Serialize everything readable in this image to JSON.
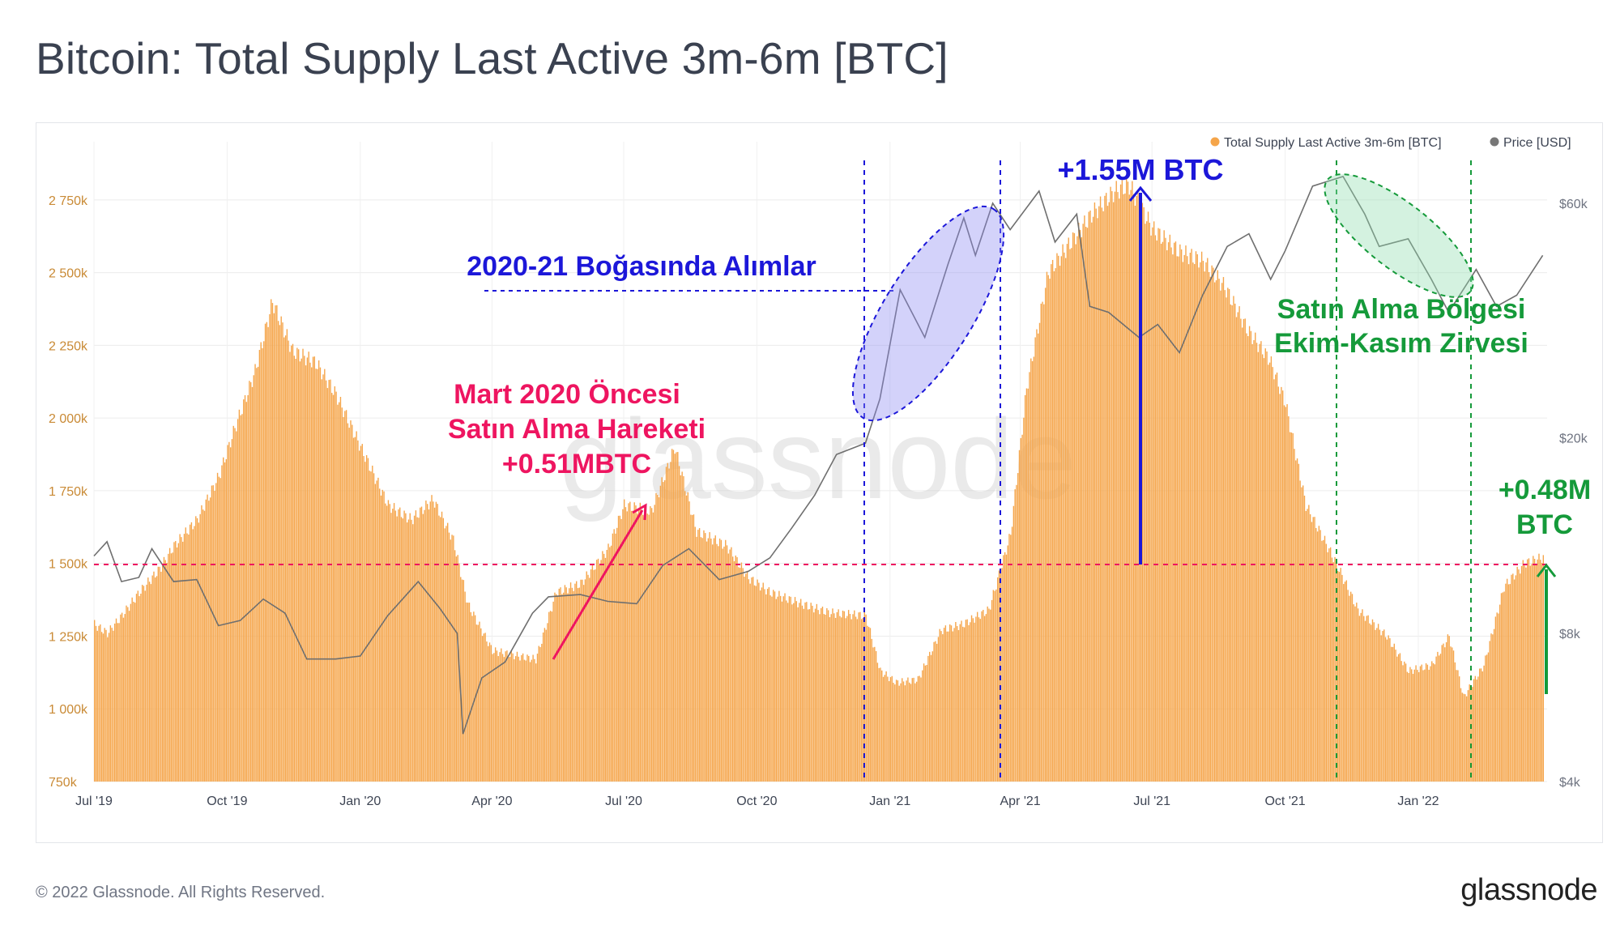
{
  "title": "Bitcoin: Total Supply Last Active 3m-6m [BTC]",
  "footer": {
    "copyright": "© 2022 Glassnode. All Rights Reserved.",
    "logo_text": "glassnode"
  },
  "watermark": "glassnode",
  "colors": {
    "supply": "#f5a54a",
    "price": "#6f6f6f",
    "blue_annotation": "#1c17d9",
    "pink_annotation": "#ee1560",
    "green_annotation": "#159a3a",
    "axis_left_text": "#c98a35",
    "axis_right_text": "#6e7380"
  },
  "annotations": {
    "buying_2020_21": "2020-21 Boğasında Alımlar",
    "plus_155": "+1.55M BTC",
    "pre_march_line1": "Mart 2020 Öncesi",
    "pre_march_line2": "Satın Alma Hareketi",
    "pre_march_line3": "+0.51MBTC",
    "buy_zone_line1": "Satın Alma Bölgesi",
    "buy_zone_line2": "Ekim-Kasım Zirvesi",
    "plus_048_line1": "+0.48M",
    "plus_048_line2": "BTC"
  },
  "chart_data": {
    "type": "bar",
    "legend": [
      {
        "name": "Total Supply Last Active 3m-6m [BTC]",
        "color": "#f5a54a"
      },
      {
        "name": "Price [USD]",
        "color": "#6f6f6f"
      }
    ],
    "legend_position": "top-right",
    "x_range": [
      "2019-07-01",
      "2022-03-31"
    ],
    "x_ticks": [
      {
        "date": "2019-07-01",
        "label": "Jul '19"
      },
      {
        "date": "2019-10-01",
        "label": "Oct '19"
      },
      {
        "date": "2020-01-01",
        "label": "Jan '20"
      },
      {
        "date": "2020-04-01",
        "label": "Apr '20"
      },
      {
        "date": "2020-07-01",
        "label": "Jul '20"
      },
      {
        "date": "2020-10-01",
        "label": "Oct '20"
      },
      {
        "date": "2021-01-01",
        "label": "Jan '21"
      },
      {
        "date": "2021-04-01",
        "label": "Apr '21"
      },
      {
        "date": "2021-07-01",
        "label": "Jul '21"
      },
      {
        "date": "2021-10-01",
        "label": "Oct '21"
      },
      {
        "date": "2022-01-01",
        "label": "Jan '22"
      }
    ],
    "y_left": {
      "range": [
        750000,
        2950000
      ],
      "ticks": [
        {
          "value": 750000,
          "label": "750k"
        },
        {
          "value": 1000000,
          "label": "1 000k"
        },
        {
          "value": 1250000,
          "label": "1 250k"
        },
        {
          "value": 1500000,
          "label": "1 500k"
        },
        {
          "value": 1750000,
          "label": "1 750k"
        },
        {
          "value": 2000000,
          "label": "2 000k"
        },
        {
          "value": 2250000,
          "label": "2 250k"
        },
        {
          "value": 2500000,
          "label": "2 500k"
        },
        {
          "value": 2750000,
          "label": "2 750k"
        }
      ]
    },
    "y_right": {
      "scale": "log",
      "range": [
        4000,
        80000
      ],
      "ticks": [
        {
          "value": 4000,
          "label": "$4k"
        },
        {
          "value": 8000,
          "label": "$8k"
        },
        {
          "value": 20000,
          "label": "$20k"
        },
        {
          "value": 60000,
          "label": "$60k"
        }
      ]
    },
    "series": [
      {
        "name": "Total Supply Last Active 3m-6m [BTC]",
        "axis": "left",
        "style": "bars",
        "points": [
          [
            "2019-07-01",
            1290000
          ],
          [
            "2019-07-10",
            1260000
          ],
          [
            "2019-07-20",
            1320000
          ],
          [
            "2019-08-01",
            1400000
          ],
          [
            "2019-08-15",
            1480000
          ],
          [
            "2019-08-25",
            1560000
          ],
          [
            "2019-09-10",
            1650000
          ],
          [
            "2019-09-25",
            1800000
          ],
          [
            "2019-10-05",
            1950000
          ],
          [
            "2019-10-20",
            2160000
          ],
          [
            "2019-11-01",
            2400000
          ],
          [
            "2019-11-15",
            2230000
          ],
          [
            "2019-12-01",
            2190000
          ],
          [
            "2019-12-15",
            2080000
          ],
          [
            "2020-01-01",
            1900000
          ],
          [
            "2020-01-20",
            1700000
          ],
          [
            "2020-02-05",
            1650000
          ],
          [
            "2020-02-20",
            1720000
          ],
          [
            "2020-03-05",
            1580000
          ],
          [
            "2020-03-15",
            1360000
          ],
          [
            "2020-04-01",
            1200000
          ],
          [
            "2020-04-20",
            1180000
          ],
          [
            "2020-05-01",
            1170000
          ],
          [
            "2020-05-15",
            1400000
          ],
          [
            "2020-06-01",
            1430000
          ],
          [
            "2020-06-20",
            1550000
          ],
          [
            "2020-07-01",
            1700000
          ],
          [
            "2020-07-20",
            1680000
          ],
          [
            "2020-08-05",
            1900000
          ],
          [
            "2020-08-20",
            1610000
          ],
          [
            "2020-09-10",
            1560000
          ],
          [
            "2020-09-25",
            1450000
          ],
          [
            "2020-10-10",
            1400000
          ],
          [
            "2020-11-01",
            1360000
          ],
          [
            "2020-11-20",
            1330000
          ],
          [
            "2020-12-15",
            1320000
          ],
          [
            "2020-12-25",
            1130000
          ],
          [
            "2021-01-05",
            1090000
          ],
          [
            "2021-01-20",
            1100000
          ],
          [
            "2021-02-05",
            1270000
          ],
          [
            "2021-02-20",
            1290000
          ],
          [
            "2021-03-10",
            1340000
          ],
          [
            "2021-03-25",
            1600000
          ],
          [
            "2021-04-05",
            2100000
          ],
          [
            "2021-04-20",
            2500000
          ],
          [
            "2021-05-05",
            2600000
          ],
          [
            "2021-05-20",
            2700000
          ],
          [
            "2021-06-05",
            2780000
          ],
          [
            "2021-06-15",
            2800000
          ],
          [
            "2021-07-01",
            2650000
          ],
          [
            "2021-07-20",
            2570000
          ],
          [
            "2021-08-05",
            2540000
          ],
          [
            "2021-08-20",
            2450000
          ],
          [
            "2021-09-05",
            2300000
          ],
          [
            "2021-09-20",
            2200000
          ],
          [
            "2021-10-01",
            2050000
          ],
          [
            "2021-10-15",
            1700000
          ],
          [
            "2021-11-05",
            1500000
          ],
          [
            "2021-11-20",
            1340000
          ],
          [
            "2021-12-10",
            1250000
          ],
          [
            "2021-12-25",
            1130000
          ],
          [
            "2022-01-10",
            1150000
          ],
          [
            "2022-01-22",
            1250000
          ],
          [
            "2022-02-01",
            1040000
          ],
          [
            "2022-02-15",
            1150000
          ],
          [
            "2022-03-01",
            1420000
          ],
          [
            "2022-03-15",
            1500000
          ],
          [
            "2022-03-28",
            1520000
          ]
        ]
      },
      {
        "name": "Price [USD]",
        "axis": "right",
        "style": "line",
        "points": [
          [
            "2019-07-01",
            11500
          ],
          [
            "2019-07-10",
            12300
          ],
          [
            "2019-07-20",
            10200
          ],
          [
            "2019-08-01",
            10400
          ],
          [
            "2019-08-10",
            11900
          ],
          [
            "2019-08-25",
            10200
          ],
          [
            "2019-09-10",
            10300
          ],
          [
            "2019-09-25",
            8300
          ],
          [
            "2019-10-10",
            8500
          ],
          [
            "2019-10-26",
            9400
          ],
          [
            "2019-11-10",
            8800
          ],
          [
            "2019-11-25",
            7100
          ],
          [
            "2019-12-15",
            7100
          ],
          [
            "2020-01-01",
            7200
          ],
          [
            "2020-01-20",
            8700
          ],
          [
            "2020-02-10",
            10200
          ],
          [
            "2020-02-25",
            9000
          ],
          [
            "2020-03-08",
            8000
          ],
          [
            "2020-03-12",
            5000
          ],
          [
            "2020-03-25",
            6500
          ],
          [
            "2020-04-10",
            7000
          ],
          [
            "2020-04-29",
            8800
          ],
          [
            "2020-05-10",
            9500
          ],
          [
            "2020-06-01",
            9600
          ],
          [
            "2020-06-20",
            9300
          ],
          [
            "2020-07-10",
            9200
          ],
          [
            "2020-07-28",
            11000
          ],
          [
            "2020-08-15",
            11900
          ],
          [
            "2020-09-05",
            10300
          ],
          [
            "2020-09-25",
            10700
          ],
          [
            "2020-10-10",
            11400
          ],
          [
            "2020-10-25",
            13100
          ],
          [
            "2020-11-10",
            15300
          ],
          [
            "2020-11-25",
            18500
          ],
          [
            "2020-12-15",
            19500
          ],
          [
            "2020-12-25",
            24000
          ],
          [
            "2021-01-08",
            40000
          ],
          [
            "2021-01-25",
            32000
          ],
          [
            "2021-02-10",
            45000
          ],
          [
            "2021-02-21",
            56000
          ],
          [
            "2021-03-01",
            47000
          ],
          [
            "2021-03-13",
            60000
          ],
          [
            "2021-03-25",
            53000
          ],
          [
            "2021-04-14",
            63500
          ],
          [
            "2021-04-25",
            50000
          ],
          [
            "2021-05-10",
            57000
          ],
          [
            "2021-05-19",
            37000
          ],
          [
            "2021-06-01",
            36000
          ],
          [
            "2021-06-22",
            32000
          ],
          [
            "2021-07-05",
            34000
          ],
          [
            "2021-07-20",
            29800
          ],
          [
            "2021-08-05",
            39000
          ],
          [
            "2021-08-22",
            49000
          ],
          [
            "2021-09-06",
            52000
          ],
          [
            "2021-09-21",
            42000
          ],
          [
            "2021-10-01",
            48000
          ],
          [
            "2021-10-20",
            65000
          ],
          [
            "2021-11-10",
            68000
          ],
          [
            "2021-11-25",
            57000
          ],
          [
            "2021-12-05",
            49000
          ],
          [
            "2021-12-25",
            50800
          ],
          [
            "2022-01-10",
            42000
          ],
          [
            "2022-01-22",
            36000
          ],
          [
            "2022-02-10",
            44000
          ],
          [
            "2022-02-24",
            37000
          ],
          [
            "2022-03-10",
            39000
          ],
          [
            "2022-03-28",
            47000
          ]
        ]
      }
    ],
    "reference_lines": [
      {
        "axis": "left",
        "value": 1520000,
        "color": "#ee1560",
        "style": "dashed"
      }
    ],
    "markers_dates": [
      "2020-12-16",
      "2021-03-16",
      "2021-10-23",
      "2022-01-23"
    ]
  }
}
